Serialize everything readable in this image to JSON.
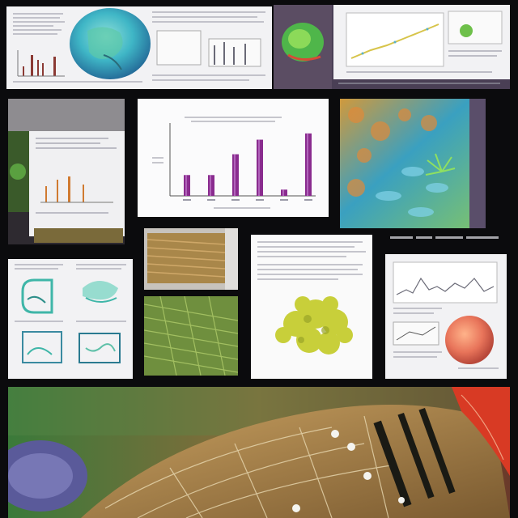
{
  "caption_strip": "",
  "chart_data": {
    "type": "bar",
    "categories": [
      "",
      "",
      "",
      "",
      "",
      ""
    ],
    "series": [
      {
        "name": "",
        "values": [
          1.0,
          1.0,
          2.0,
          2.7,
          0.3,
          3.0
        ]
      }
    ],
    "title": "",
    "xlabel": "",
    "ylabel": "",
    "ylim": [
      0,
      3.5
    ],
    "grid": false,
    "colors": {
      "bar": "#8a2c8f",
      "bar_light": "#c07acc",
      "axis": "#555555"
    }
  },
  "palette": {
    "background": "#0b0b0d",
    "paper": "#f2f2f4",
    "teal": "#3fb6c6",
    "green": "#6ec04a",
    "olive": "#9a8f45",
    "orange": "#e8745a",
    "red": "#d83a24",
    "yellow_green": "#c8cf3a"
  },
  "icons": {
    "top_left": "teal-globe-icon",
    "coral": "coral-organism-icon",
    "sphere": "orange-sphere-icon"
  }
}
